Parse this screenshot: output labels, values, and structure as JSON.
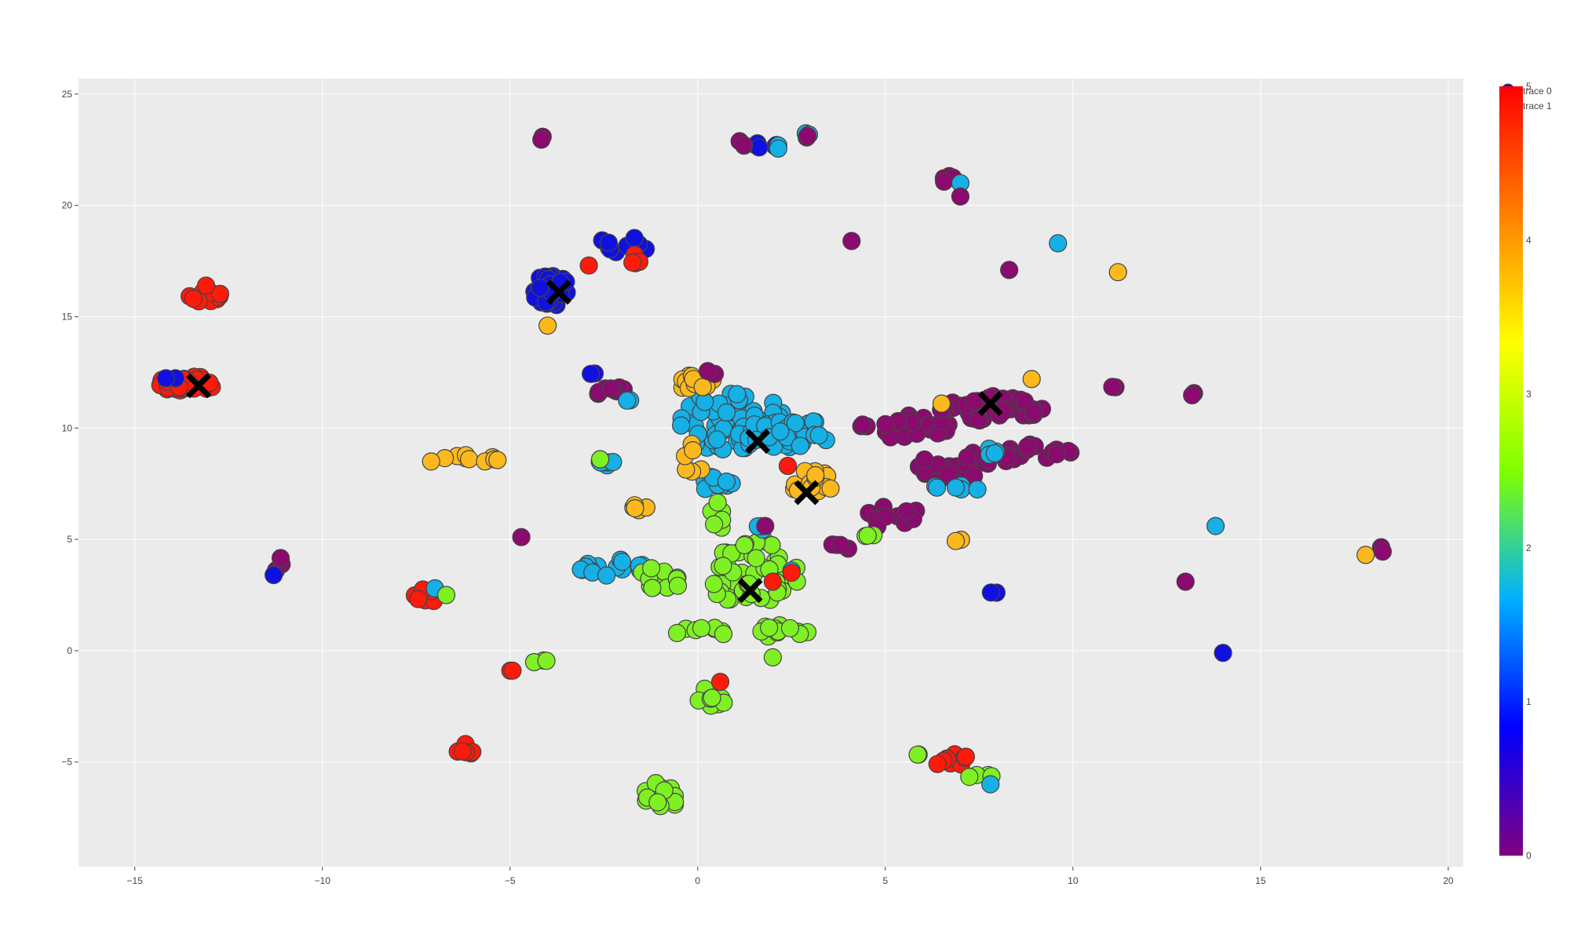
{
  "chart_data": {
    "type": "scatter",
    "title": "",
    "xlabel": "",
    "ylabel": "",
    "xlim": [
      -16.5,
      20.4
    ],
    "ylim": [
      -9.7,
      25.7
    ],
    "x_ticks": [
      -15,
      -10,
      -5,
      0,
      5,
      10,
      15,
      20
    ],
    "y_ticks": [
      -5,
      0,
      5,
      10,
      15,
      20,
      25
    ],
    "x_tick_labels": [
      "−15",
      "−10",
      "−5",
      "0",
      "5",
      "10",
      "15",
      "20"
    ],
    "y_tick_labels": [
      "−5",
      "0",
      "5",
      "10",
      "15",
      "20",
      "25"
    ],
    "grid": true,
    "plot_background": "#ebebeb",
    "grid_color": "#ffffff",
    "colorscale": [
      "#800080",
      "#0000ff",
      "#00b0ff",
      "#80ff00",
      "#ffff00",
      "#ff8000",
      "#ff0000"
    ],
    "colorbar": {
      "range": [
        0,
        5
      ],
      "ticks": [
        0,
        1,
        2,
        3,
        4,
        5
      ],
      "tick_labels": [
        "0",
        "1",
        "2",
        "3",
        "4",
        "5"
      ]
    },
    "class_colors": {
      "0": "#8b0a6e",
      "1": "#1010e0",
      "2": "#15b0e6",
      "3": "#7ff024",
      "4": "#fbb91d",
      "5": "#ff1a0c"
    },
    "legend": {
      "position": "top-right",
      "entries": [
        "trace 0",
        "trace 1"
      ]
    },
    "series": [
      {
        "name": "trace 0",
        "marker": "circle",
        "clusters": [
          {
            "class": 5,
            "x": -13.6,
            "y": 12.0,
            "rx": 0.8,
            "ry": 0.35,
            "n": 40
          },
          {
            "class": 5,
            "x": -13.1,
            "y": 15.9,
            "rx": 0.45,
            "ry": 0.25,
            "n": 12
          },
          {
            "class": 5,
            "x": -13.1,
            "y": 16.4,
            "rx": 0.1,
            "ry": 0.1,
            "n": 1
          },
          {
            "class": 1,
            "x": -14.0,
            "y": 12.2,
            "rx": 0.2,
            "ry": 0.15,
            "n": 2
          },
          {
            "class": 1,
            "x": -3.9,
            "y": 16.2,
            "rx": 0.5,
            "ry": 0.7,
            "n": 45
          },
          {
            "class": 1,
            "x": -2.0,
            "y": 18.2,
            "rx": 0.7,
            "ry": 0.4,
            "n": 12
          },
          {
            "class": 5,
            "x": -2.9,
            "y": 17.3,
            "rx": 0.1,
            "ry": 0.1,
            "n": 1
          },
          {
            "class": 5,
            "x": -1.6,
            "y": 17.6,
            "rx": 0.3,
            "ry": 0.2,
            "n": 4
          },
          {
            "class": 0,
            "x": -4.1,
            "y": 23.0,
            "rx": 0.1,
            "ry": 0.1,
            "n": 2
          },
          {
            "class": 4,
            "x": -4.0,
            "y": 14.6,
            "rx": 0.1,
            "ry": 0.1,
            "n": 1
          },
          {
            "class": 1,
            "x": 1.7,
            "y": 22.7,
            "rx": 0.5,
            "ry": 0.1,
            "n": 6
          },
          {
            "class": 2,
            "x": 2.1,
            "y": 22.6,
            "rx": 0.3,
            "ry": 0.1,
            "n": 3
          },
          {
            "class": 0,
            "x": 1.2,
            "y": 22.8,
            "rx": 0.2,
            "ry": 0.1,
            "n": 2
          },
          {
            "class": 2,
            "x": 2.9,
            "y": 23.3,
            "rx": 0.15,
            "ry": 0.15,
            "n": 2
          },
          {
            "class": 0,
            "x": 2.9,
            "y": 23.1,
            "rx": 0.15,
            "ry": 0.1,
            "n": 2
          },
          {
            "class": 0,
            "x": 6.7,
            "y": 21.2,
            "rx": 0.2,
            "ry": 0.2,
            "n": 4
          },
          {
            "class": 2,
            "x": 7.0,
            "y": 21.0,
            "rx": 0.1,
            "ry": 0.1,
            "n": 1
          },
          {
            "class": 0,
            "x": 7.0,
            "y": 20.4,
            "rx": 0.1,
            "ry": 0.1,
            "n": 1
          },
          {
            "class": 0,
            "x": 4.1,
            "y": 18.4,
            "rx": 0.1,
            "ry": 0.1,
            "n": 1
          },
          {
            "class": 0,
            "x": 8.3,
            "y": 17.1,
            "rx": 0.1,
            "ry": 0.1,
            "n": 1
          },
          {
            "class": 2,
            "x": 9.6,
            "y": 18.3,
            "rx": 0.1,
            "ry": 0.1,
            "n": 1
          },
          {
            "class": 4,
            "x": 11.2,
            "y": 17.0,
            "rx": 0.1,
            "ry": 0.1,
            "n": 1
          },
          {
            "class": 2,
            "x": 0.9,
            "y": 10.3,
            "rx": 1.4,
            "ry": 1.4,
            "n": 70
          },
          {
            "class": 2,
            "x": 2.4,
            "y": 9.8,
            "rx": 1.2,
            "ry": 0.7,
            "n": 35
          },
          {
            "class": 2,
            "x": 0.6,
            "y": 7.5,
            "rx": 0.5,
            "ry": 0.6,
            "n": 12
          },
          {
            "class": 4,
            "x": 0.0,
            "y": 12.0,
            "rx": 0.5,
            "ry": 0.4,
            "n": 12
          },
          {
            "class": 4,
            "x": 3.0,
            "y": 7.6,
            "rx": 0.7,
            "ry": 0.5,
            "n": 16
          },
          {
            "class": 4,
            "x": -0.1,
            "y": 8.5,
            "rx": 0.4,
            "ry": 1.0,
            "n": 6
          },
          {
            "class": 5,
            "x": 2.4,
            "y": 8.3,
            "rx": 0.1,
            "ry": 0.1,
            "n": 1
          },
          {
            "class": 0,
            "x": 0.3,
            "y": 12.5,
            "rx": 0.2,
            "ry": 0.2,
            "n": 2
          },
          {
            "class": 0,
            "x": 7.9,
            "y": 10.9,
            "rx": 1.3,
            "ry": 0.6,
            "n": 40
          },
          {
            "class": 0,
            "x": 5.6,
            "y": 10.3,
            "rx": 1.3,
            "ry": 0.9,
            "n": 25
          },
          {
            "class": 0,
            "x": 9.0,
            "y": 8.8,
            "rx": 1.0,
            "ry": 0.5,
            "n": 20
          },
          {
            "class": 0,
            "x": 6.9,
            "y": 8.3,
            "rx": 1.1,
            "ry": 0.8,
            "n": 25
          },
          {
            "class": 0,
            "x": 5.2,
            "y": 6.0,
            "rx": 0.9,
            "ry": 0.5,
            "n": 12
          },
          {
            "class": 0,
            "x": 3.7,
            "y": 4.6,
            "rx": 0.5,
            "ry": 0.2,
            "n": 4
          },
          {
            "class": 2,
            "x": 6.8,
            "y": 7.3,
            "rx": 0.8,
            "ry": 0.15,
            "n": 6
          },
          {
            "class": 2,
            "x": 7.7,
            "y": 9.0,
            "rx": 0.5,
            "ry": 0.2,
            "n": 4
          },
          {
            "class": 4,
            "x": 6.5,
            "y": 11.1,
            "rx": 0.1,
            "ry": 0.1,
            "n": 1
          },
          {
            "class": 4,
            "x": 8.9,
            "y": 12.2,
            "rx": 0.1,
            "ry": 0.1,
            "n": 1
          },
          {
            "class": 4,
            "x": 7.0,
            "y": 4.9,
            "rx": 0.15,
            "ry": 0.1,
            "n": 2
          },
          {
            "class": 3,
            "x": 4.7,
            "y": 5.2,
            "rx": 0.3,
            "ry": 0.1,
            "n": 3
          },
          {
            "class": 0,
            "x": -2.4,
            "y": 11.7,
            "rx": 0.5,
            "ry": 0.2,
            "n": 8
          },
          {
            "class": 1,
            "x": -2.8,
            "y": 12.4,
            "rx": 0.1,
            "ry": 0.1,
            "n": 2
          },
          {
            "class": 2,
            "x": -1.8,
            "y": 11.3,
            "rx": 0.2,
            "ry": 0.1,
            "n": 2
          },
          {
            "class": 4,
            "x": -6.3,
            "y": 8.6,
            "rx": 1.0,
            "ry": 0.2,
            "n": 10
          },
          {
            "class": 2,
            "x": -2.4,
            "y": 8.5,
            "rx": 0.4,
            "ry": 0.2,
            "n": 6
          },
          {
            "class": 3,
            "x": -2.6,
            "y": 8.6,
            "rx": 0.1,
            "ry": 0.1,
            "n": 1
          },
          {
            "class": 4,
            "x": -1.5,
            "y": 6.5,
            "rx": 0.3,
            "ry": 0.2,
            "n": 5
          },
          {
            "class": 0,
            "x": -4.7,
            "y": 5.1,
            "rx": 0.1,
            "ry": 0.1,
            "n": 1
          },
          {
            "class": 2,
            "x": -2.3,
            "y": 3.7,
            "rx": 1.0,
            "ry": 0.4,
            "n": 18
          },
          {
            "class": 3,
            "x": -1.0,
            "y": 3.2,
            "rx": 0.6,
            "ry": 0.6,
            "n": 12
          },
          {
            "class": 3,
            "x": 1.5,
            "y": 3.4,
            "rx": 1.2,
            "ry": 1.6,
            "n": 50
          },
          {
            "class": 3,
            "x": 0.6,
            "y": 6.0,
            "rx": 0.3,
            "ry": 0.8,
            "n": 6
          },
          {
            "class": 3,
            "x": 1.2,
            "y": 0.9,
            "rx": 2.0,
            "ry": 0.3,
            "n": 20
          },
          {
            "class": 3,
            "x": 0.2,
            "y": -2.2,
            "rx": 0.6,
            "ry": 0.5,
            "n": 8
          },
          {
            "class": 3,
            "x": -1.0,
            "y": -6.6,
            "rx": 0.5,
            "ry": 0.7,
            "n": 14
          },
          {
            "class": 3,
            "x": -4.2,
            "y": -0.5,
            "rx": 0.2,
            "ry": 0.1,
            "n": 3
          },
          {
            "class": 3,
            "x": 2.0,
            "y": -0.3,
            "rx": 0.1,
            "ry": 0.1,
            "n": 1
          },
          {
            "class": 2,
            "x": 1.7,
            "y": 5.6,
            "rx": 0.2,
            "ry": 0.3,
            "n": 3
          },
          {
            "class": 0,
            "x": 1.8,
            "y": 5.6,
            "rx": 0.1,
            "ry": 0.1,
            "n": 1
          },
          {
            "class": 2,
            "x": 2.5,
            "y": 3.6,
            "rx": 0.1,
            "ry": 0.1,
            "n": 1
          },
          {
            "class": 5,
            "x": 2.5,
            "y": 3.5,
            "rx": 0.1,
            "ry": 0.1,
            "n": 1
          },
          {
            "class": 5,
            "x": 2.0,
            "y": 3.1,
            "rx": 0.1,
            "ry": 0.1,
            "n": 1
          },
          {
            "class": 5,
            "x": 0.6,
            "y": -1.4,
            "rx": 0.1,
            "ry": 0.1,
            "n": 1
          },
          {
            "class": 0,
            "x": -11.1,
            "y": 3.9,
            "rx": 0.2,
            "ry": 0.4,
            "n": 3
          },
          {
            "class": 1,
            "x": -11.3,
            "y": 3.4,
            "rx": 0.1,
            "ry": 0.1,
            "n": 1
          },
          {
            "class": 5,
            "x": -7.2,
            "y": 2.5,
            "rx": 0.4,
            "ry": 0.3,
            "n": 8
          },
          {
            "class": 2,
            "x": -7.0,
            "y": 2.8,
            "rx": 0.1,
            "ry": 0.1,
            "n": 1
          },
          {
            "class": 3,
            "x": -6.7,
            "y": 2.5,
            "rx": 0.1,
            "ry": 0.1,
            "n": 1
          },
          {
            "class": 5,
            "x": -4.9,
            "y": -0.9,
            "rx": 0.2,
            "ry": 0.1,
            "n": 2
          },
          {
            "class": 5,
            "x": -6.3,
            "y": -4.4,
            "rx": 0.4,
            "ry": 0.3,
            "n": 7
          },
          {
            "class": 5,
            "x": 6.6,
            "y": -4.9,
            "rx": 0.6,
            "ry": 0.4,
            "n": 12
          },
          {
            "class": 3,
            "x": 7.4,
            "y": -5.6,
            "rx": 0.5,
            "ry": 0.1,
            "n": 4
          },
          {
            "class": 3,
            "x": 6.0,
            "y": -4.7,
            "rx": 0.2,
            "ry": 0.1,
            "n": 2
          },
          {
            "class": 2,
            "x": 7.8,
            "y": -6.0,
            "rx": 0.1,
            "ry": 0.1,
            "n": 1
          },
          {
            "class": 1,
            "x": 7.9,
            "y": 2.6,
            "rx": 0.15,
            "ry": 0.1,
            "n": 2
          },
          {
            "class": 2,
            "x": 13.8,
            "y": 5.6,
            "rx": 0.1,
            "ry": 0.1,
            "n": 1
          },
          {
            "class": 0,
            "x": 13.0,
            "y": 3.1,
            "rx": 0.1,
            "ry": 0.1,
            "n": 1
          },
          {
            "class": 1,
            "x": 14.0,
            "y": -0.1,
            "rx": 0.1,
            "ry": 0.1,
            "n": 1
          },
          {
            "class": 0,
            "x": 11.1,
            "y": 11.8,
            "rx": 0.1,
            "ry": 0.1,
            "n": 2
          },
          {
            "class": 0,
            "x": 13.2,
            "y": 11.5,
            "rx": 0.1,
            "ry": 0.1,
            "n": 2
          },
          {
            "class": 4,
            "x": 17.8,
            "y": 4.3,
            "rx": 0.1,
            "ry": 0.1,
            "n": 1
          },
          {
            "class": 0,
            "x": 18.2,
            "y": 4.7,
            "rx": 0.1,
            "ry": 0.3,
            "n": 2
          }
        ]
      },
      {
        "name": "trace 1",
        "marker": "x",
        "color": "#000000",
        "x": [
          -13.3,
          -3.7,
          1.6,
          2.9,
          1.4,
          7.8
        ],
        "y": [
          11.9,
          16.1,
          9.4,
          7.1,
          2.7,
          11.1
        ]
      }
    ]
  }
}
